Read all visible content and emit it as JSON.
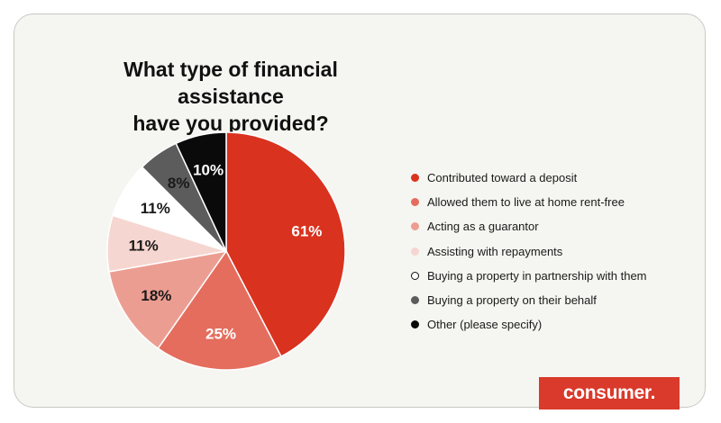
{
  "title_lines": [
    "What type of financial assistance",
    "have you provided?"
  ],
  "brand": {
    "name": "consumer."
  },
  "colors": {
    "card_background": "#f5f5f1",
    "brand_red": "#d93a2b",
    "slice_outline": "#ffffff"
  },
  "chart_data": {
    "type": "pie",
    "title": "What type of financial assistance have you provided?",
    "unit": "%",
    "start_angle_deg": 0,
    "direction": "clockwise",
    "legend_position": "right",
    "slices": [
      {
        "name": "Contributed toward a deposit",
        "value": 61,
        "label": "61%",
        "color": "#d9321f",
        "label_color": "#ffffff"
      },
      {
        "name": "Allowed them to live at home rent-free",
        "value": 25,
        "label": "25%",
        "color": "#e46d5e",
        "label_color": "#ffffff"
      },
      {
        "name": "Acting as a guarantor",
        "value": 18,
        "label": "18%",
        "color": "#ec9d91",
        "label_color": "#1a1a1a"
      },
      {
        "name": "Assisting with repayments",
        "value": 11,
        "label": "11%",
        "color": "#f6d6d0",
        "label_color": "#1a1a1a"
      },
      {
        "name": "Buying a property in partnership with them",
        "value": 11,
        "label": "11%",
        "color": "#ffffff",
        "label_color": "#1a1a1a"
      },
      {
        "name": "Buying a property on their behalf",
        "value": 8,
        "label": "8%",
        "color": "#5c5c5c",
        "label_color": "#1a1a1a"
      },
      {
        "name": "Other (please specify)",
        "value": 10,
        "label": "10%",
        "color": "#0a0a0a",
        "label_color": "#ffffff"
      }
    ]
  }
}
